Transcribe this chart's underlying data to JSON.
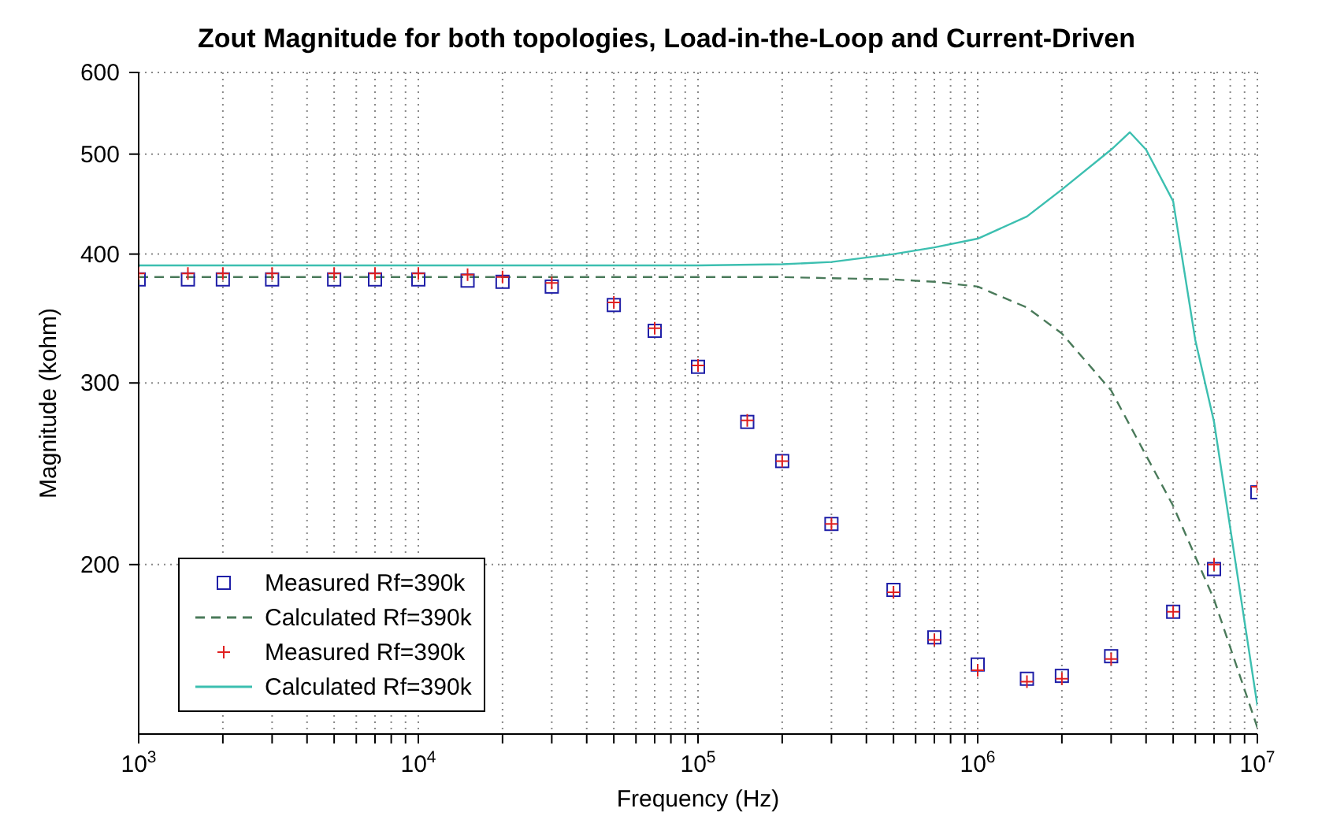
{
  "chart_data": {
    "type": "scatter",
    "title": "Zout Magnitude for both topologies, Load-in-the-Loop and Current-Driven",
    "xlabel": "Frequency (Hz)",
    "ylabel": "Magnitude (kohm)",
    "log": "xy",
    "grid": true,
    "legend": "bottom left",
    "x": [
      1000,
      1500,
      2000,
      3000,
      5000,
      7000,
      10000,
      15000,
      20000,
      30000,
      50000,
      70000,
      100000,
      150000,
      200000,
      300000,
      500000,
      700000,
      1000000,
      1500000,
      2000000,
      3000000,
      5000000,
      7000000,
      10000000
    ],
    "xlim": [
      1000,
      10000000
    ],
    "ylim": [
      137,
      600
    ],
    "xticks": [
      {
        "value": 1000,
        "label": "10$^{3}$"
      },
      {
        "value": 2000,
        "label": null
      },
      {
        "value": 3000,
        "label": null
      },
      {
        "value": 4000,
        "label": null
      },
      {
        "value": 5000,
        "label": null
      },
      {
        "value": 6000,
        "label": null
      },
      {
        "value": 7000,
        "label": null
      },
      {
        "value": 8000,
        "label": null
      },
      {
        "value": 9000,
        "label": null
      },
      {
        "value": 10000,
        "label": "10$^{4}$"
      },
      {
        "value": 20000,
        "label": null
      },
      {
        "value": 30000,
        "label": null
      },
      {
        "value": 40000,
        "label": null
      },
      {
        "value": 50000,
        "label": null
      },
      {
        "value": 60000,
        "label": null
      },
      {
        "value": 70000,
        "label": null
      },
      {
        "value": 80000,
        "label": null
      },
      {
        "value": 90000,
        "label": null
      },
      {
        "value": 100000,
        "label": "10$^{5}$"
      },
      {
        "value": 200000,
        "label": null
      },
      {
        "value": 300000,
        "label": null
      },
      {
        "value": 400000,
        "label": null
      },
      {
        "value": 500000,
        "label": null
      },
      {
        "value": 600000,
        "label": null
      },
      {
        "value": 700000,
        "label": null
      },
      {
        "value": 800000,
        "label": null
      },
      {
        "value": 900000,
        "label": null
      },
      {
        "value": 1000000,
        "label": "10$^{6}$"
      },
      {
        "value": 2000000,
        "label": null
      },
      {
        "value": 3000000,
        "label": null
      },
      {
        "value": 4000000,
        "label": null
      },
      {
        "value": 5000000,
        "label": null
      },
      {
        "value": 6000000,
        "label": null
      },
      {
        "value": 7000000,
        "label": null
      },
      {
        "value": 8000000,
        "label": null
      },
      {
        "value": 9000000,
        "label": null
      },
      {
        "value": 10000000,
        "label": "10$^{7}$"
      }
    ],
    "yticks": [
      200,
      300,
      400,
      500,
      600
    ],
    "series": [
      {
        "name": "Measured Rf=390k",
        "marker": "square",
        "color": "#1f1fa8",
        "values": [
          378,
          378,
          378,
          378,
          378,
          378,
          378,
          377,
          376,
          372,
          357,
          337,
          311,
          275,
          252,
          219,
          189,
          170,
          160,
          155,
          156,
          163,
          180,
          198,
          235
        ]
      },
      {
        "name": "Calculated Rf=390k",
        "type": "line",
        "marker": "none",
        "line_style": "dashed",
        "color": "#4a7a5a",
        "values": [
          380,
          380,
          380,
          380,
          380,
          380,
          380,
          380,
          380,
          380,
          380,
          380,
          380,
          380,
          380,
          379,
          378,
          376,
          372,
          355,
          335,
          295,
          228,
          185,
          139
        ]
      },
      {
        "name": "Measured Rf=390k",
        "marker": "cross",
        "color": "#e02020",
        "values": [
          383,
          383,
          383,
          383,
          383,
          383,
          383,
          382,
          380,
          375,
          359,
          339,
          312,
          276,
          252,
          219,
          188,
          169,
          158,
          154,
          155,
          162,
          180,
          200,
          238
        ]
      },
      {
        "name": "Calculated Rf=390k",
        "type": "line",
        "marker": "none",
        "line_style": "solid",
        "color": "#3cbfb0",
        "x": [
          1000,
          10000,
          100000,
          200000,
          300000,
          500000,
          700000,
          1000000,
          1500000,
          2000000,
          3000000,
          3500000,
          4000000,
          5000000,
          6000000,
          7000000,
          10000000
        ],
        "values": [
          390,
          390,
          390,
          391,
          393,
          400,
          406,
          414,
          435,
          462,
          505,
          525,
          505,
          450,
          330,
          275,
          146
        ]
      }
    ]
  }
}
